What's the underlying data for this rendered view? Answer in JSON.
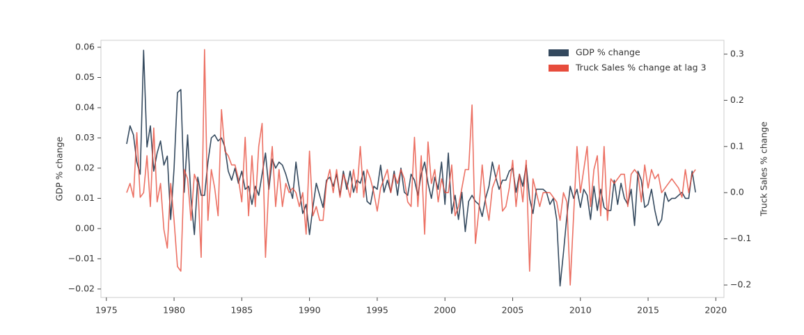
{
  "chart_data": {
    "type": "line",
    "xlabel": null,
    "ylabel": "GDP % change",
    "y2label": "Truck Sales % change",
    "legend": "upper right",
    "grid": false,
    "xlim": [
      1974.6,
      2020.6
    ],
    "xticks": [
      1975,
      1980,
      1985,
      1990,
      1995,
      2000,
      2005,
      2010,
      2015,
      2020
    ],
    "ylim": [
      -0.0228,
      0.0623
    ],
    "yticks": [
      {
        "value": -0.02,
        "label": "−0.02"
      },
      {
        "value": -0.01,
        "label": "−0.01"
      },
      {
        "value": 0,
        "label": "0.00"
      },
      0.01,
      0.02,
      0.03,
      0.04,
      0.05,
      0.06
    ],
    "y2lim": [
      -0.227,
      0.33
    ],
    "y2ticks": [
      {
        "value": -0.2,
        "label": "−0.2"
      },
      {
        "value": -0.1,
        "label": "−0.1"
      },
      {
        "value": 0,
        "label": "0.0"
      },
      0.1,
      0.2,
      0.3
    ],
    "x": [
      1976.5,
      1976.75,
      1977,
      1977.25,
      1977.5,
      1977.75,
      1978,
      1978.25,
      1978.5,
      1978.75,
      1979,
      1979.25,
      1979.5,
      1979.75,
      1980,
      1980.25,
      1980.5,
      1980.75,
      1981,
      1981.25,
      1981.5,
      1981.75,
      1982,
      1982.25,
      1982.5,
      1982.75,
      1983,
      1983.25,
      1983.5,
      1983.75,
      1984,
      1984.25,
      1984.5,
      1984.75,
      1985,
      1985.25,
      1985.5,
      1985.75,
      1986,
      1986.25,
      1986.5,
      1986.75,
      1987,
      1987.25,
      1987.5,
      1987.75,
      1988,
      1988.25,
      1988.5,
      1988.75,
      1989,
      1989.25,
      1989.5,
      1989.75,
      1990,
      1990.25,
      1990.5,
      1990.75,
      1991,
      1991.25,
      1991.5,
      1991.75,
      1992,
      1992.25,
      1992.5,
      1992.75,
      1993,
      1993.25,
      1993.5,
      1993.75,
      1994,
      1994.25,
      1994.5,
      1994.75,
      1995,
      1995.25,
      1995.5,
      1995.75,
      1996,
      1996.25,
      1996.5,
      1996.75,
      1997,
      1997.25,
      1997.5,
      1997.75,
      1998,
      1998.25,
      1998.5,
      1998.75,
      1999,
      1999.25,
      1999.5,
      1999.75,
      2000,
      2000.25,
      2000.5,
      2000.75,
      2001,
      2001.25,
      2001.5,
      2001.75,
      2002,
      2002.25,
      2002.5,
      2002.75,
      2003,
      2003.25,
      2003.5,
      2003.75,
      2004,
      2004.25,
      2004.5,
      2004.75,
      2005,
      2005.25,
      2005.5,
      2005.75,
      2006,
      2006.25,
      2006.5,
      2006.75,
      2007,
      2007.25,
      2007.5,
      2007.75,
      2008,
      2008.25,
      2008.5,
      2008.75,
      2009,
      2009.25,
      2009.5,
      2009.75,
      2010,
      2010.25,
      2010.5,
      2010.75,
      2011,
      2011.25,
      2011.5,
      2011.75,
      2012,
      2012.25,
      2012.5,
      2012.75,
      2013,
      2013.25,
      2013.5,
      2013.75,
      2014,
      2014.25,
      2014.5,
      2014.75,
      2015,
      2015.25,
      2015.5,
      2015.75,
      2016,
      2016.25,
      2016.5,
      2016.75,
      2017,
      2017.25,
      2017.5,
      2017.75,
      2018,
      2018.25,
      2018.5
    ],
    "series": [
      {
        "name": "GDP % change",
        "color": "#34495e",
        "axis": "y",
        "values": [
          0.028,
          0.034,
          0.031,
          0.022,
          0.018,
          0.059,
          0.027,
          0.034,
          0.019,
          0.025,
          0.029,
          0.021,
          0.024,
          0.003,
          0.02,
          0.045,
          0.046,
          0.012,
          0.031,
          0.01,
          -0.002,
          0.017,
          0.011,
          0.011,
          0.022,
          0.03,
          0.031,
          0.029,
          0.03,
          0.027,
          0.019,
          0.016,
          0.02,
          0.015,
          0.019,
          0.013,
          0.014,
          0.008,
          0.014,
          0.011,
          0.018,
          0.025,
          0.013,
          0.023,
          0.02,
          0.022,
          0.021,
          0.018,
          0.014,
          0.01,
          0.022,
          0.013,
          0.005,
          0.008,
          -0.002,
          0.007,
          0.015,
          0.011,
          0.007,
          0.016,
          0.017,
          0.014,
          0.018,
          0.011,
          0.019,
          0.013,
          0.019,
          0.012,
          0.016,
          0.015,
          0.019,
          0.009,
          0.008,
          0.014,
          0.013,
          0.021,
          0.012,
          0.016,
          0.012,
          0.019,
          0.011,
          0.02,
          0.012,
          0.011,
          0.018,
          0.016,
          0.011,
          0.018,
          0.022,
          0.015,
          0.01,
          0.017,
          0.013,
          0.022,
          0.008,
          0.025,
          0.005,
          0.011,
          0.003,
          0.012,
          -0.001,
          0.009,
          0.011,
          0.009,
          0.008,
          0.004,
          0.01,
          0.014,
          0.022,
          0.017,
          0.013,
          0.016,
          0.016,
          0.019,
          0.02,
          0.012,
          0.018,
          0.014,
          0.021,
          0.01,
          0.005,
          0.013,
          0.013,
          0.013,
          0.012,
          0.008,
          0.01,
          0.003,
          -0.019,
          -0.008,
          0.004,
          0.014,
          0.01,
          0.013,
          0.007,
          0.013,
          0.011,
          0.003,
          0.014,
          0.006,
          0.013,
          0.007,
          0.006,
          0.006,
          0.016,
          0.008,
          0.015,
          0.01,
          0.008,
          0.013,
          0.001,
          0.019,
          0.016,
          0.007,
          0.008,
          0.013,
          0.006,
          0.001,
          0.003,
          0.012,
          0.009,
          0.01,
          0.01,
          0.011,
          0.012,
          0.01,
          0.01,
          0.019,
          0.012
        ]
      },
      {
        "name": "Truck Sales % change at lag 3",
        "color": "#e74c3c",
        "axis": "y2",
        "values": [
          0.0,
          0.02,
          -0.01,
          0.13,
          -0.01,
          0.0,
          0.08,
          -0.03,
          0.14,
          -0.02,
          0.02,
          -0.08,
          -0.12,
          0.02,
          -0.06,
          -0.16,
          -0.17,
          0.05,
          0.03,
          -0.06,
          0.04,
          0.02,
          -0.14,
          0.31,
          -0.06,
          0.05,
          0.01,
          -0.05,
          0.18,
          0.09,
          0.08,
          0.06,
          0.06,
          0.03,
          -0.02,
          0.12,
          -0.05,
          0.08,
          -0.03,
          0.1,
          0.15,
          -0.14,
          0.02,
          0.1,
          -0.03,
          0.05,
          -0.03,
          0.02,
          0.0,
          0.01,
          0.0,
          -0.03,
          0.0,
          -0.09,
          0.09,
          -0.05,
          -0.03,
          -0.06,
          -0.06,
          0.02,
          0.05,
          0.0,
          0.05,
          -0.01,
          0.04,
          0.02,
          -0.01,
          0.05,
          0.0,
          0.1,
          -0.01,
          0.05,
          0.03,
          0.0,
          -0.04,
          0.01,
          0.03,
          0.05,
          0.0,
          0.04,
          0.02,
          0.05,
          0.03,
          -0.02,
          -0.03,
          0.12,
          -0.03,
          0.08,
          -0.09,
          0.11,
          0.02,
          0.05,
          -0.02,
          0.03,
          0.0,
          0.0,
          0.06,
          -0.05,
          -0.03,
          0.01,
          0.05,
          0.05,
          0.19,
          -0.11,
          -0.04,
          0.06,
          -0.02,
          -0.06,
          0.01,
          0.03,
          0.06,
          -0.04,
          -0.03,
          0.01,
          0.07,
          -0.03,
          0.04,
          -0.02,
          0.07,
          -0.17,
          0.03,
          0.0,
          -0.03,
          0.0,
          0.0,
          0.0,
          -0.01,
          -0.02,
          -0.06,
          0.0,
          -0.02,
          -0.2,
          -0.05,
          0.1,
          0.0,
          0.05,
          0.1,
          -0.03,
          0.05,
          0.08,
          -0.05,
          0.1,
          -0.06,
          0.03,
          0.02,
          0.03,
          0.04,
          0.04,
          -0.03,
          0.04,
          0.05,
          0.04,
          -0.02,
          0.06,
          0.01,
          0.05,
          0.03,
          0.04,
          0.0,
          0.01,
          0.02,
          0.03,
          0.02,
          0.01,
          -0.01,
          0.05,
          0.0,
          0.04,
          0.05
        ]
      }
    ]
  }
}
